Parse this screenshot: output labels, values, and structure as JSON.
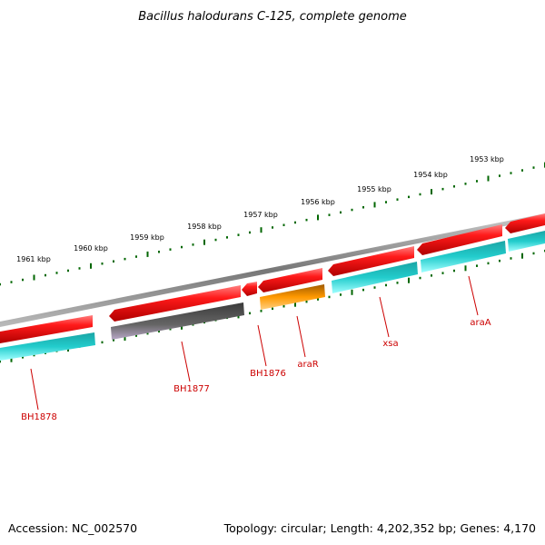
{
  "title": "Bacillus halodurans C-125, complete genome",
  "footer": {
    "accession": "Accession: NC_002570",
    "summary": "Topology: circular; Length: 4,202,352 bp; Genes: 4,170"
  },
  "kbp_labels": [
    "1961 kbp",
    "1960 kbp",
    "1959 kbp",
    "1958 kbp",
    "1957 kbp",
    "1956 kbp",
    "1955 kbp",
    "1954 kbp",
    "1953 kbp"
  ],
  "gene_labels": [
    "BH1878",
    "BH1877",
    "BH1876",
    "araR",
    "xsa",
    "araA"
  ],
  "colors": {
    "backbone": "#808080",
    "gene_forward": "#ee1111",
    "cds": "#22cccc",
    "cds_gray": "#606060",
    "cds_orange": "#ff9900",
    "tick": "#006600",
    "label": "#cc0000"
  }
}
